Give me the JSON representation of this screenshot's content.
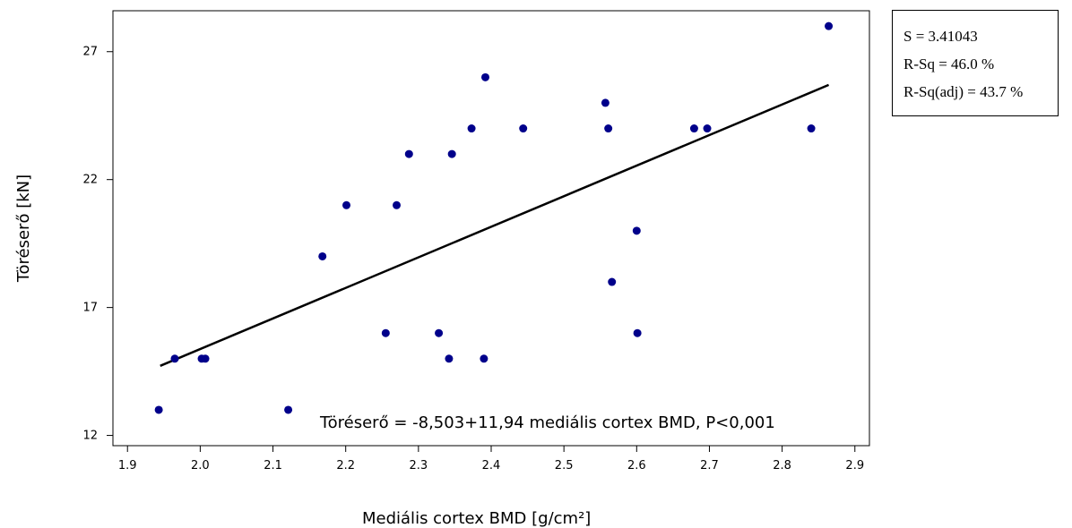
{
  "chart_data": {
    "type": "scatter",
    "title": "",
    "xlabel": "Mediális cortex BMD [g/cm²]",
    "ylabel": "Töréserő [kN]",
    "xlim": [
      1.88,
      2.92
    ],
    "ylim": [
      11.6,
      28.6
    ],
    "xticks": [
      "1.9",
      "2.0",
      "2.1",
      "2.2",
      "2.3",
      "2.4",
      "2.5",
      "2.6",
      "2.7",
      "2.8",
      "2.9"
    ],
    "yticks": [
      "12",
      "17",
      "22",
      "27"
    ],
    "grid": false,
    "point_color": "#00008b",
    "line_color": "#000000",
    "points": [
      {
        "x": 1.943,
        "y": 13.0
      },
      {
        "x": 1.965,
        "y": 15.0
      },
      {
        "x": 2.002,
        "y": 15.0
      },
      {
        "x": 2.007,
        "y": 15.0
      },
      {
        "x": 2.121,
        "y": 13.0
      },
      {
        "x": 2.168,
        "y": 19.0
      },
      {
        "x": 2.201,
        "y": 21.0
      },
      {
        "x": 2.255,
        "y": 16.0
      },
      {
        "x": 2.27,
        "y": 21.0
      },
      {
        "x": 2.287,
        "y": 23.0
      },
      {
        "x": 2.328,
        "y": 16.0
      },
      {
        "x": 2.342,
        "y": 15.0
      },
      {
        "x": 2.346,
        "y": 23.0
      },
      {
        "x": 2.373,
        "y": 24.0
      },
      {
        "x": 2.39,
        "y": 15.0
      },
      {
        "x": 2.392,
        "y": 26.0
      },
      {
        "x": 2.444,
        "y": 24.0
      },
      {
        "x": 2.557,
        "y": 25.0
      },
      {
        "x": 2.561,
        "y": 24.0
      },
      {
        "x": 2.566,
        "y": 18.0
      },
      {
        "x": 2.6,
        "y": 20.0
      },
      {
        "x": 2.601,
        "y": 16.0
      },
      {
        "x": 2.679,
        "y": 24.0
      },
      {
        "x": 2.697,
        "y": 24.0
      },
      {
        "x": 2.84,
        "y": 24.0
      },
      {
        "x": 2.864,
        "y": 28.0
      }
    ],
    "fit_line": {
      "x": [
        1.945,
        2.864
      ],
      "y": [
        14.72,
        25.7
      ]
    },
    "equation": "Töréserő = -8,503+11,94 mediális cortex BMD, P<0,001",
    "stats": [
      "S = 3.41043",
      "R-Sq = 46.0 %",
      "R-Sq(adj) = 43.7 %"
    ]
  }
}
